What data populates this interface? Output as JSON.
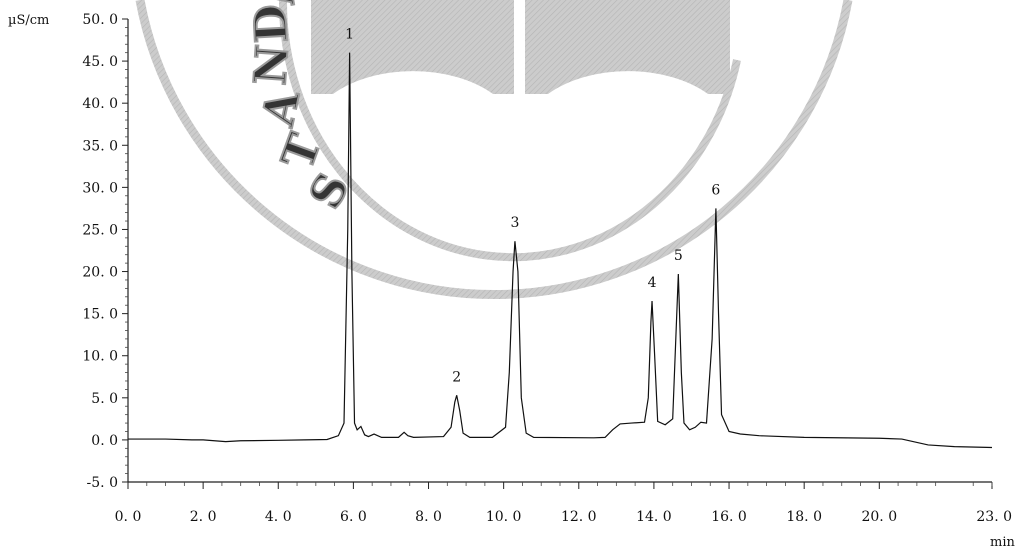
{
  "chart_data": {
    "type": "line",
    "title": "",
    "xlabel": "min",
    "ylabel": "µS/cm",
    "xlim": [
      0,
      23
    ],
    "ylim": [
      -5,
      50
    ],
    "x_ticks": [
      {
        "value": 0,
        "label": "0. 0"
      },
      {
        "value": 2,
        "label": "2. 0"
      },
      {
        "value": 4,
        "label": "4. 0"
      },
      {
        "value": 6,
        "label": "6. 0"
      },
      {
        "value": 8,
        "label": "8. 0"
      },
      {
        "value": 10,
        "label": "10. 0"
      },
      {
        "value": 12,
        "label": "12. 0"
      },
      {
        "value": 14,
        "label": "14. 0"
      },
      {
        "value": 16,
        "label": "16. 0"
      },
      {
        "value": 18,
        "label": "18. 0"
      },
      {
        "value": 20,
        "label": "20. 0"
      },
      {
        "value": 23,
        "label": "23. 0"
      }
    ],
    "y_ticks": [
      {
        "value": 50,
        "label": "50. 0"
      },
      {
        "value": 45,
        "label": "45. 0"
      },
      {
        "value": 40,
        "label": "40. 0"
      },
      {
        "value": 35,
        "label": "35. 0"
      },
      {
        "value": 30,
        "label": "30. 0"
      },
      {
        "value": 25,
        "label": "25. 0"
      },
      {
        "value": 20,
        "label": "20. 0"
      },
      {
        "value": 15,
        "label": "15. 0"
      },
      {
        "value": 10,
        "label": "10. 0"
      },
      {
        "value": 5,
        "label": "5. 0"
      },
      {
        "value": 0,
        "label": "0. 0"
      },
      {
        "value": -5,
        "label": "-5. 0"
      }
    ],
    "peaks": [
      {
        "label": "1",
        "retention_time": 5.9,
        "height": 46.0
      },
      {
        "label": "2",
        "retention_time": 8.75,
        "height": 5.3
      },
      {
        "label": "3",
        "retention_time": 10.3,
        "height": 23.6
      },
      {
        "label": "4",
        "retention_time": 13.95,
        "height": 16.5
      },
      {
        "label": "5",
        "retention_time": 14.65,
        "height": 19.7
      },
      {
        "label": "6",
        "retention_time": 15.65,
        "height": 27.5
      }
    ],
    "series": [
      {
        "values": [
          [
            0.0,
            0.1
          ],
          [
            1.0,
            0.1
          ],
          [
            1.7,
            0.0
          ],
          [
            2.0,
            0.0
          ],
          [
            2.6,
            -0.2
          ],
          [
            3.0,
            -0.1
          ],
          [
            4.0,
            -0.05
          ],
          [
            4.7,
            0.0
          ],
          [
            5.3,
            0.05
          ],
          [
            5.6,
            0.5
          ],
          [
            5.75,
            2.0
          ],
          [
            5.85,
            25.0
          ],
          [
            5.9,
            46.0
          ],
          [
            5.96,
            20.0
          ],
          [
            6.03,
            2.0
          ],
          [
            6.1,
            1.2
          ],
          [
            6.2,
            1.6
          ],
          [
            6.3,
            0.6
          ],
          [
            6.4,
            0.4
          ],
          [
            6.55,
            0.7
          ],
          [
            6.75,
            0.3
          ],
          [
            7.2,
            0.3
          ],
          [
            7.35,
            0.9
          ],
          [
            7.45,
            0.5
          ],
          [
            7.6,
            0.3
          ],
          [
            8.4,
            0.4
          ],
          [
            8.6,
            1.5
          ],
          [
            8.7,
            4.5
          ],
          [
            8.75,
            5.3
          ],
          [
            8.83,
            3.5
          ],
          [
            8.92,
            0.8
          ],
          [
            9.1,
            0.3
          ],
          [
            9.7,
            0.3
          ],
          [
            10.05,
            1.5
          ],
          [
            10.15,
            8.0
          ],
          [
            10.25,
            20.0
          ],
          [
            10.3,
            23.6
          ],
          [
            10.38,
            20.0
          ],
          [
            10.47,
            5.0
          ],
          [
            10.6,
            0.8
          ],
          [
            10.8,
            0.3
          ],
          [
            12.4,
            0.25
          ],
          [
            12.7,
            0.3
          ],
          [
            12.9,
            1.2
          ],
          [
            13.1,
            1.9
          ],
          [
            13.4,
            2.0
          ],
          [
            13.75,
            2.1
          ],
          [
            13.85,
            5.0
          ],
          [
            13.92,
            14.0
          ],
          [
            13.95,
            16.5
          ],
          [
            14.02,
            10.0
          ],
          [
            14.1,
            2.2
          ],
          [
            14.3,
            1.8
          ],
          [
            14.5,
            2.5
          ],
          [
            14.6,
            14.0
          ],
          [
            14.65,
            19.7
          ],
          [
            14.73,
            8.0
          ],
          [
            14.8,
            2.0
          ],
          [
            14.95,
            1.2
          ],
          [
            15.1,
            1.5
          ],
          [
            15.25,
            2.1
          ],
          [
            15.4,
            2.0
          ],
          [
            15.55,
            12.0
          ],
          [
            15.65,
            27.5
          ],
          [
            15.72,
            15.0
          ],
          [
            15.8,
            3.0
          ],
          [
            16.0,
            1.0
          ],
          [
            16.3,
            0.7
          ],
          [
            16.8,
            0.5
          ],
          [
            18.0,
            0.3
          ],
          [
            20.0,
            0.2
          ],
          [
            20.6,
            0.1
          ],
          [
            21.3,
            -0.6
          ],
          [
            22.0,
            -0.8
          ],
          [
            23.0,
            -0.9
          ]
        ]
      }
    ],
    "grid": false,
    "legend": "none"
  }
}
